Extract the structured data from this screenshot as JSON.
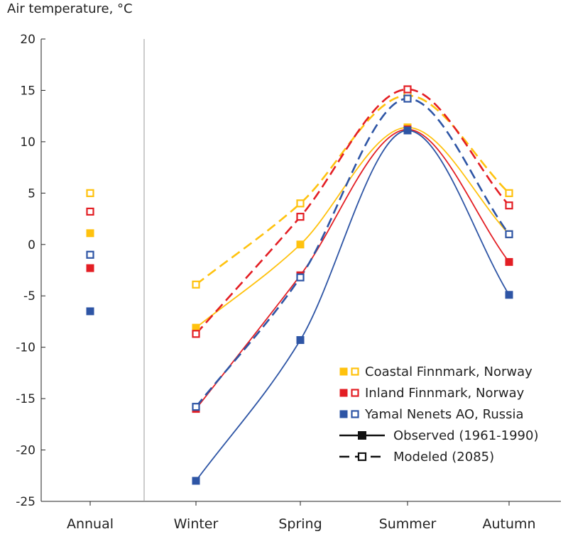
{
  "chart_data": {
    "type": "line",
    "ylabel": "Air temperature, °C",
    "xlabel": "",
    "ylim": [
      -25,
      20
    ],
    "yticks": [
      20,
      15,
      10,
      5,
      0,
      -5,
      -10,
      -15,
      -20,
      -25
    ],
    "categories": [
      "Annual",
      "Winter",
      "Spring",
      "Summer",
      "Autumn"
    ],
    "legend_position": "lower-right",
    "grid": false,
    "regions": [
      {
        "name": "Coastal Finnmark, Norway",
        "color": "#FFC20E"
      },
      {
        "name": "Inland Finnmark, Norway",
        "color": "#E31E24"
      },
      {
        "name": "Yamal Nenets AO, Russia",
        "color": "#2E55A5"
      }
    ],
    "line_styles": [
      {
        "label": "Observed (1961-1990)",
        "style": "solid",
        "marker": "filled-square"
      },
      {
        "label": "Modeled (2085)",
        "style": "dashed",
        "marker": "open-square"
      }
    ],
    "series": [
      {
        "region": "Coastal Finnmark, Norway",
        "kind": "observed",
        "annual": 1.1,
        "seasons": [
          -8.1,
          0.0,
          11.4,
          1.0
        ]
      },
      {
        "region": "Coastal Finnmark, Norway",
        "kind": "modeled",
        "annual": 5.0,
        "seasons": [
          -3.9,
          4.0,
          14.5,
          5.0
        ]
      },
      {
        "region": "Inland Finnmark, Norway",
        "kind": "observed",
        "annual": -2.3,
        "seasons": [
          -16.0,
          -3.0,
          11.2,
          -1.7
        ]
      },
      {
        "region": "Inland Finnmark, Norway",
        "kind": "modeled",
        "annual": 3.2,
        "seasons": [
          -8.7,
          2.7,
          15.1,
          3.8
        ]
      },
      {
        "region": "Yamal Nenets AO, Russia",
        "kind": "observed",
        "annual": -6.5,
        "seasons": [
          -23.0,
          -9.3,
          11.1,
          -4.9
        ]
      },
      {
        "region": "Yamal Nenets AO, Russia",
        "kind": "modeled",
        "annual": -1.0,
        "seasons": [
          -15.8,
          -3.2,
          14.2,
          1.0
        ]
      }
    ]
  }
}
